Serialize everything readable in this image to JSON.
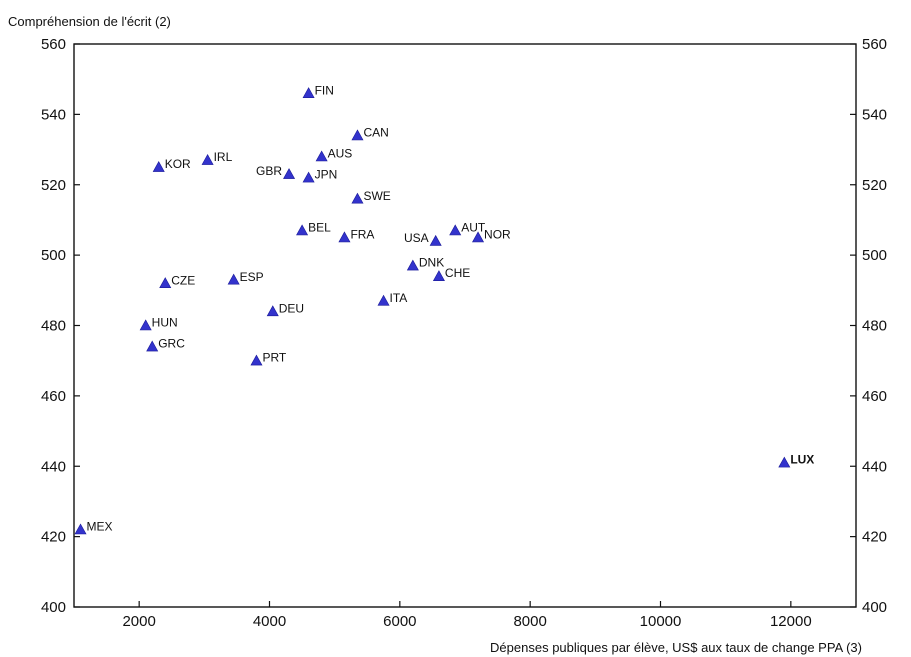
{
  "chart_data": {
    "type": "scatter",
    "title": "",
    "ylabel": "Compréhension de l'écrit (2)",
    "xlabel": "Dépenses publiques par élève, US$ aux taux de change PPA (3)",
    "xlim": [
      1000,
      13000
    ],
    "ylim": [
      400,
      560
    ],
    "xticks": [
      2000,
      4000,
      6000,
      8000,
      10000,
      12000
    ],
    "yticks": [
      400,
      420,
      440,
      460,
      480,
      500,
      520,
      540,
      560
    ],
    "xtick_labels": [
      "2000",
      "4000",
      "6000",
      "8000",
      "10000",
      "12000"
    ],
    "ytick_labels": [
      "400",
      "420",
      "440",
      "460",
      "480",
      "500",
      "520",
      "540",
      "560"
    ],
    "grid": false,
    "marker_color": "#3333cc",
    "points": [
      {
        "label": "FIN",
        "x": 4600,
        "y": 546
      },
      {
        "label": "CAN",
        "x": 5350,
        "y": 534
      },
      {
        "label": "AUS",
        "x": 4800,
        "y": 528
      },
      {
        "label": "IRL",
        "x": 3050,
        "y": 527
      },
      {
        "label": "KOR",
        "x": 2300,
        "y": 525
      },
      {
        "label": "GBR",
        "x": 4300,
        "y": 523
      },
      {
        "label": "JPN",
        "x": 4600,
        "y": 522
      },
      {
        "label": "SWE",
        "x": 5350,
        "y": 516
      },
      {
        "label": "BEL",
        "x": 4500,
        "y": 507
      },
      {
        "label": "AUT",
        "x": 6850,
        "y": 507
      },
      {
        "label": "FRA",
        "x": 5150,
        "y": 505
      },
      {
        "label": "NOR",
        "x": 7200,
        "y": 505
      },
      {
        "label": "USA",
        "x": 6550,
        "y": 504
      },
      {
        "label": "DNK",
        "x": 6200,
        "y": 497
      },
      {
        "label": "CHE",
        "x": 6600,
        "y": 494
      },
      {
        "label": "ESP",
        "x": 3450,
        "y": 493
      },
      {
        "label": "CZE",
        "x": 2400,
        "y": 492
      },
      {
        "label": "ITA",
        "x": 5750,
        "y": 487
      },
      {
        "label": "DEU",
        "x": 4050,
        "y": 484
      },
      {
        "label": "HUN",
        "x": 2100,
        "y": 480
      },
      {
        "label": "GRC",
        "x": 2200,
        "y": 474
      },
      {
        "label": "PRT",
        "x": 3800,
        "y": 470
      },
      {
        "label": "LUX",
        "x": 11900,
        "y": 441
      },
      {
        "label": "MEX",
        "x": 1100,
        "y": 422
      }
    ]
  }
}
